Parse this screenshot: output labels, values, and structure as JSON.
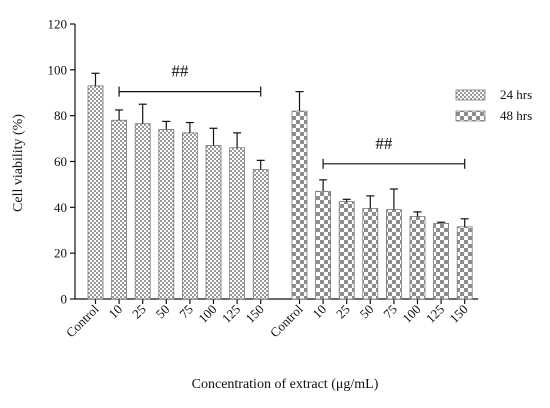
{
  "chart_data": {
    "type": "bar",
    "title": "",
    "xlabel": "Concentration of extract (μg/mL)",
    "ylabel": "Cell viability (%)",
    "ylim": [
      0,
      120
    ],
    "yticks": [
      0,
      20,
      40,
      60,
      80,
      100,
      120
    ],
    "grid": false,
    "legend_position": "top-right",
    "series": [
      {
        "name": "24 hrs",
        "categories": [
          "Control",
          "10",
          "25",
          "50",
          "75",
          "100",
          "125",
          "150"
        ],
        "values": [
          93,
          78,
          76.5,
          74,
          72.5,
          67,
          66,
          56.5
        ],
        "errors": [
          5.5,
          4.5,
          8.5,
          3.5,
          4.5,
          7.5,
          6.5,
          4
        ]
      },
      {
        "name": "48 hrs",
        "categories": [
          "Control",
          "10",
          "25",
          "50",
          "75",
          "100",
          "125",
          "150"
        ],
        "values": [
          82,
          47,
          42.5,
          39.5,
          39,
          36,
          33,
          31.5
        ],
        "errors": [
          8.5,
          5,
          1,
          5.5,
          9,
          2,
          0.5,
          3.5
        ]
      }
    ],
    "annotations": [
      {
        "text": "##",
        "series": 0
      },
      {
        "text": "##",
        "series": 1
      }
    ]
  }
}
